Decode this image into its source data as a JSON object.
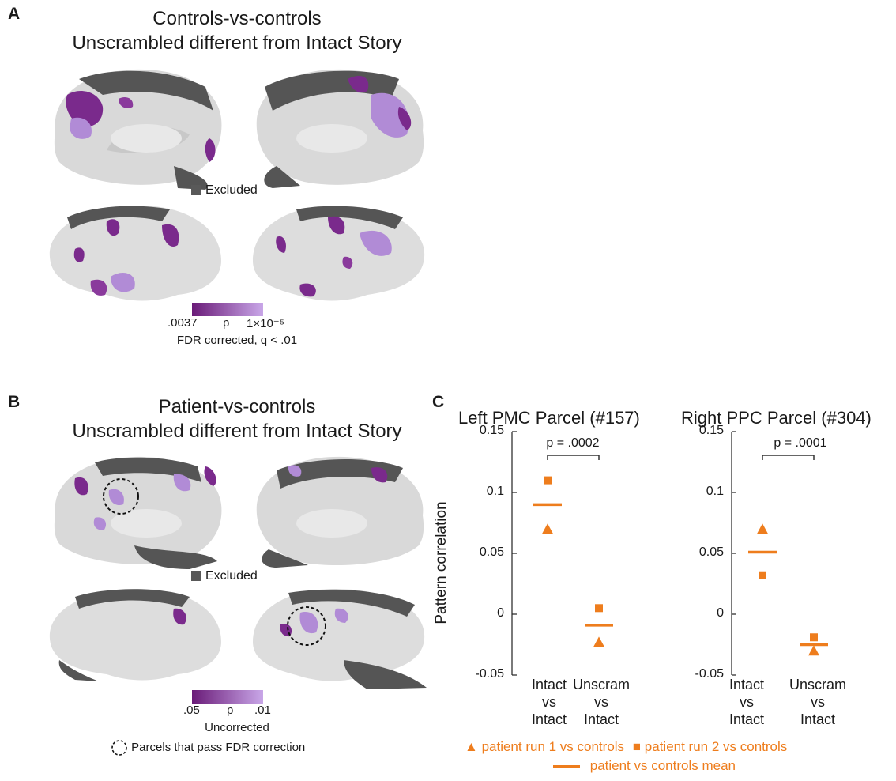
{
  "panel_a": {
    "letter": "A",
    "title_line1": "Controls-vs-controls",
    "title_line2": "Unscrambled different from Intact Story",
    "excluded_label": "Excluded",
    "colorbar": {
      "left_label": ".0037",
      "mid_label": "p",
      "right_label": "1×10⁻⁵",
      "caption": "FDR corrected, q < .01",
      "color_low": "#6a1b78",
      "color_high": "#c9a7e8"
    }
  },
  "panel_b": {
    "letter": "B",
    "title_line1": "Patient-vs-controls",
    "title_line2": "Unscrambled different from Intact Story",
    "excluded_label": "Excluded",
    "colorbar": {
      "left_label": ".05",
      "mid_label": "p",
      "right_label": ".01",
      "caption": "Uncorrected",
      "color_low": "#6a1b78",
      "color_high": "#c9a7e8"
    },
    "circle_legend": "Parcels that pass FDR correction"
  },
  "panel_c": {
    "letter": "C",
    "ylabel": "Pattern correlation",
    "legend": {
      "run1": "patient run 1 vs controls",
      "run2": "patient run 2 vs controls",
      "mean": "patient vs controls mean"
    },
    "colors": {
      "marker": "#ee7d1d",
      "bracket": "#333333"
    }
  },
  "chart_data": [
    {
      "type": "scatter",
      "title": "Left PMC Parcel (#157)",
      "ylabel": "Pattern correlation",
      "ylim": [
        -0.05,
        0.15
      ],
      "yticks": [
        "0.15",
        "0.1",
        "0.05",
        "0",
        "-0.05"
      ],
      "ytick_values": [
        0.15,
        0.1,
        0.05,
        0,
        -0.05
      ],
      "categories": [
        [
          "Intact",
          "vs",
          "Intact"
        ],
        [
          "Unscram",
          "vs",
          "Intact"
        ]
      ],
      "series": [
        {
          "name": "patient run 1 vs controls",
          "marker": "triangle",
          "values": [
            0.07,
            -0.023
          ]
        },
        {
          "name": "patient run 2 vs controls",
          "marker": "square",
          "values": [
            0.11,
            0.005
          ]
        },
        {
          "name": "patient vs controls mean",
          "marker": "line",
          "values": [
            0.09,
            -0.009
          ]
        }
      ],
      "annotation": "p = .0002"
    },
    {
      "type": "scatter",
      "title": "Right PPC Parcel (#304)",
      "ylim": [
        -0.05,
        0.15
      ],
      "yticks": [
        "0.15",
        "0.1",
        "0.05",
        "0",
        "-0.05"
      ],
      "ytick_values": [
        0.15,
        0.1,
        0.05,
        0,
        -0.05
      ],
      "categories": [
        [
          "Intact",
          "vs",
          "Intact"
        ],
        [
          "Unscram",
          "vs",
          "Intact"
        ]
      ],
      "series": [
        {
          "name": "patient run 1 vs controls",
          "marker": "triangle",
          "values": [
            0.07,
            -0.03
          ]
        },
        {
          "name": "patient run 2 vs controls",
          "marker": "square",
          "values": [
            0.032,
            -0.019
          ]
        },
        {
          "name": "patient vs controls mean",
          "marker": "line",
          "values": [
            0.051,
            -0.025
          ]
        }
      ],
      "annotation": "p = .0001"
    }
  ]
}
